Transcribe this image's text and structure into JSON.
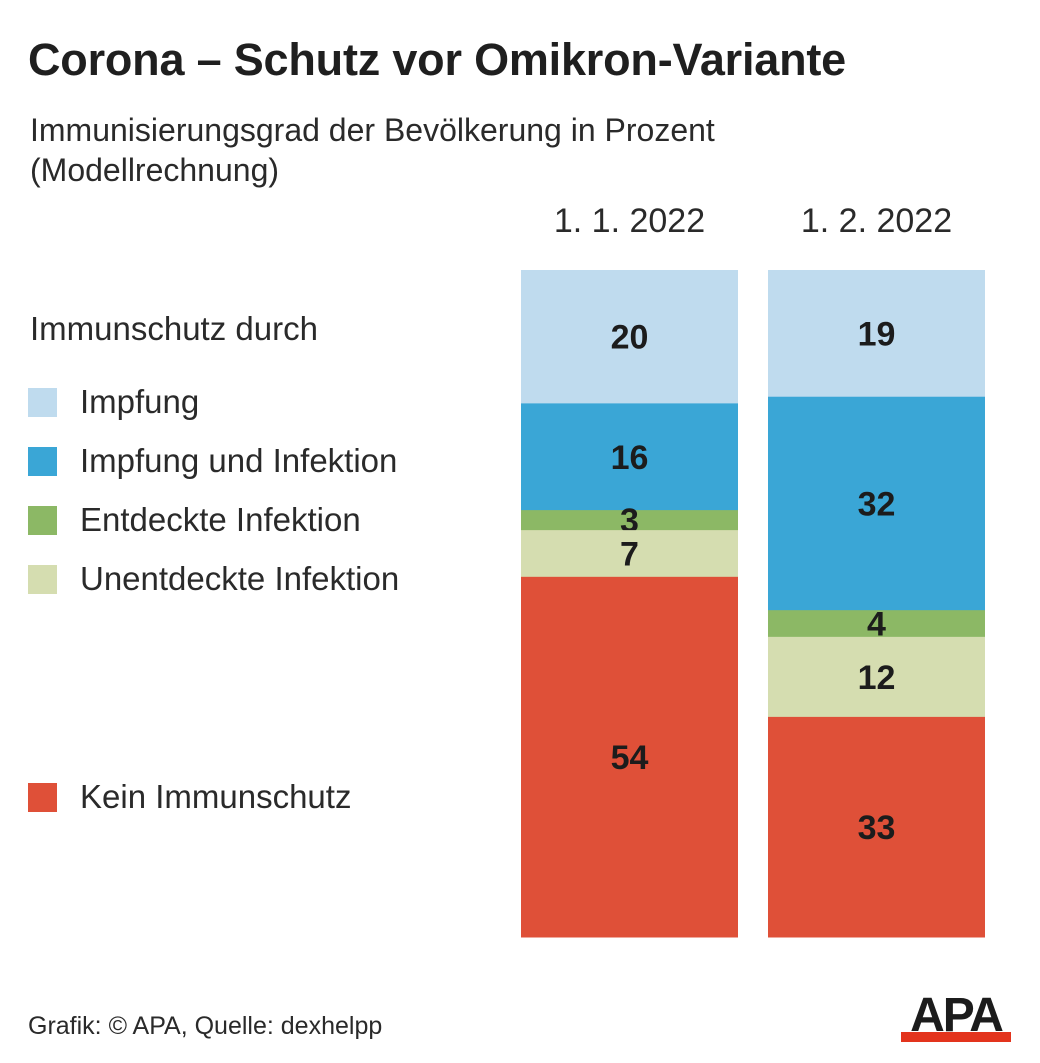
{
  "title": "Corona – Schutz vor Omikron-Variante",
  "subtitle_line1": "Immunisierungsgrad der Bevölkerung in Prozent",
  "subtitle_line2": "(Modellrechnung)",
  "legend_heading": "Immunschutz durch",
  "footer": "Grafik: © APA, Quelle: dexhelpp",
  "logo_text": "APA",
  "colors": {
    "impfung": "#bfdbee",
    "impfung_infektion": "#3aa6d6",
    "entdeckt": "#8cb865",
    "unentdeckt": "#d5ddb0",
    "kein": "#df5038",
    "label": "#1c1c1c",
    "logo": "#1c1c1c",
    "logo_accent": "#e3341d"
  },
  "chart_data": {
    "type": "bar",
    "stacked": true,
    "categories": [
      "1. 1. 2022",
      "1. 2. 2022"
    ],
    "series": [
      {
        "name": "Impfung",
        "color": "#bfdbee",
        "values": [
          20,
          19
        ]
      },
      {
        "name": "Impfung und Infektion",
        "color": "#3aa6d6",
        "values": [
          16,
          32
        ]
      },
      {
        "name": "Entdeckte Infektion",
        "color": "#8cb865",
        "values": [
          3,
          4
        ]
      },
      {
        "name": "Unentdeckte Infektion",
        "color": "#d5ddb0",
        "values": [
          7,
          12
        ]
      },
      {
        "name": "Kein Immunschutz",
        "color": "#df5038",
        "values": [
          54,
          33
        ]
      }
    ],
    "ylim": [
      0,
      100
    ],
    "legend_position": "left",
    "grid": false
  }
}
